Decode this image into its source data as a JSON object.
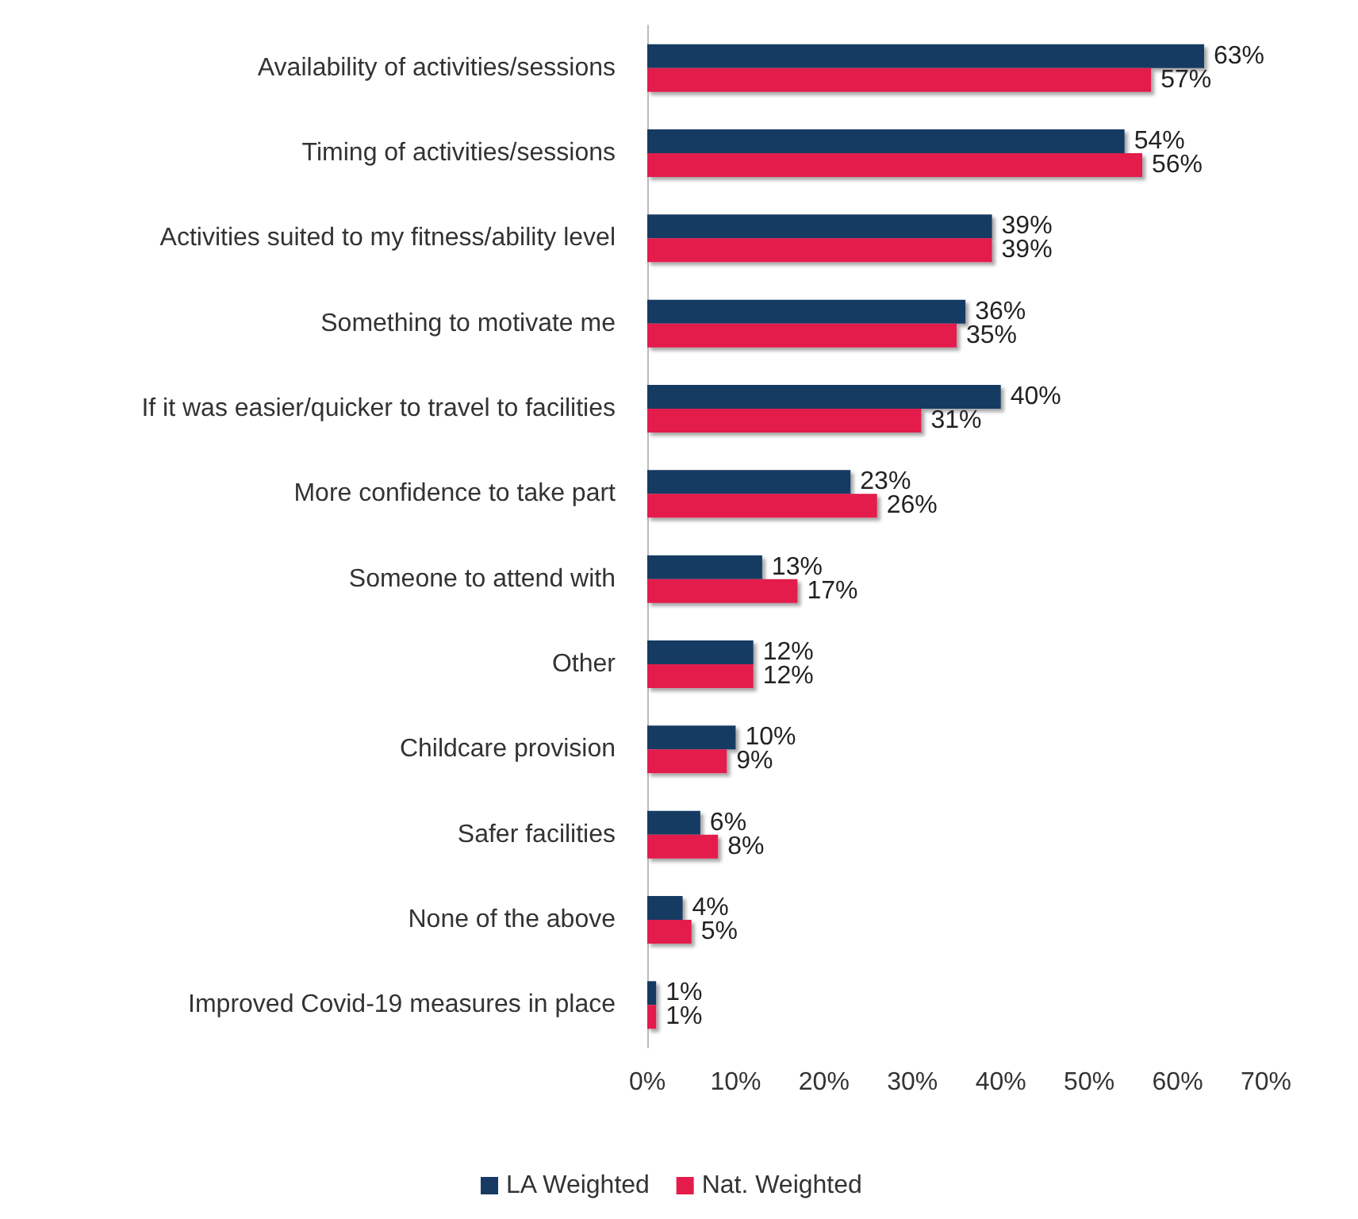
{
  "chart_data": {
    "type": "bar",
    "orientation": "horizontal",
    "categories": [
      "Availability of activities/sessions",
      "Timing of activities/sessions",
      "Activities suited to my fitness/ability level",
      "Something to motivate me",
      "If it was easier/quicker to travel to facilities",
      "More confidence to take part",
      "Someone to attend with",
      "Other",
      "Childcare provision",
      "Safer facilities",
      "None of the above",
      "Improved Covid-19 measures in place"
    ],
    "series": [
      {
        "name": "LA Weighted",
        "color": "#173a64",
        "values": [
          63,
          54,
          39,
          36,
          40,
          23,
          13,
          12,
          10,
          6,
          4,
          1
        ],
        "value_labels": [
          "63%",
          "54%",
          "39%",
          "36%",
          "40%",
          "23%",
          "13%",
          "12%",
          "10%",
          "6%",
          "4%",
          "1%"
        ]
      },
      {
        "name": "Nat. Weighted",
        "color": "#e31c4b",
        "values": [
          57,
          56,
          39,
          35,
          31,
          26,
          17,
          12,
          9,
          8,
          5,
          1
        ],
        "value_labels": [
          "57%",
          "56%",
          "39%",
          "35%",
          "31%",
          "26%",
          "17%",
          "12%",
          "9%",
          "8%",
          "5%",
          "1%"
        ]
      }
    ],
    "xlim": [
      0,
      70
    ],
    "xticks": [
      {
        "value": 0,
        "label": "0%"
      },
      {
        "value": 10,
        "label": "10%"
      },
      {
        "value": 20,
        "label": "20%"
      },
      {
        "value": 30,
        "label": "30%"
      },
      {
        "value": 40,
        "label": "40%"
      },
      {
        "value": 50,
        "label": "50%"
      },
      {
        "value": 60,
        "label": "60%"
      },
      {
        "value": 70,
        "label": "70%"
      }
    ],
    "grid": false,
    "legend": "bottom"
  }
}
